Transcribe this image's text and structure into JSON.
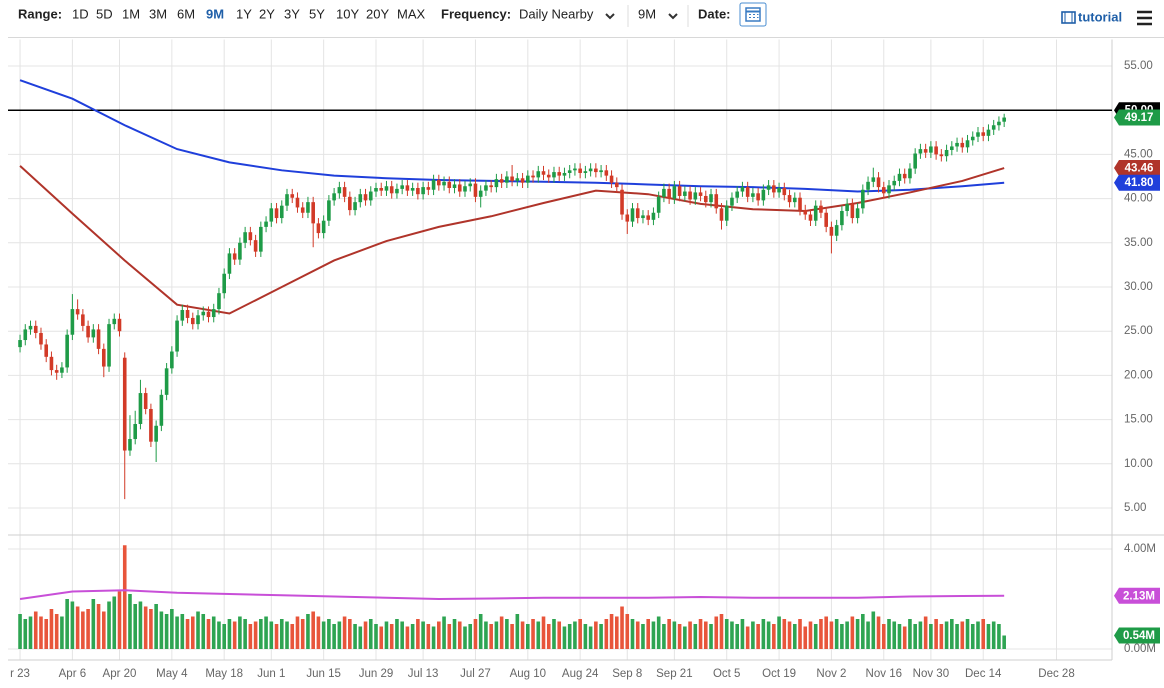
{
  "toolbar": {
    "range_label": "Range:",
    "ranges": [
      "1D",
      "5D",
      "1M",
      "3M",
      "6M",
      "9M",
      "1Y",
      "2Y",
      "3Y",
      "5Y",
      "10Y",
      "20Y",
      "MAX"
    ],
    "active_range": 5,
    "frequency_label": "Frequency:",
    "frequency": "Daily Nearby",
    "period": "9M",
    "date_label": "Date:",
    "tutorial": "tutorial"
  },
  "chart_data": {
    "type": "candlestick",
    "up_color": "#1e9b47",
    "down_color": "#d23a27",
    "grid": true,
    "xlim": [
      -2.3,
      208.6
    ],
    "xticks": [
      {
        "value": 0,
        "label": "r 23"
      },
      {
        "value": 10,
        "label": "Apr 6"
      },
      {
        "value": 19,
        "label": "Apr 20"
      },
      {
        "value": 29,
        "label": "May 4"
      },
      {
        "value": 39,
        "label": "May 18"
      },
      {
        "value": 48,
        "label": "Jun 1"
      },
      {
        "value": 58,
        "label": "Jun 15"
      },
      {
        "value": 68,
        "label": "Jun 29"
      },
      {
        "value": 77,
        "label": "Jul 13"
      },
      {
        "value": 87,
        "label": "Jul 27"
      },
      {
        "value": 97,
        "label": "Aug 10"
      },
      {
        "value": 107,
        "label": "Aug 24"
      },
      {
        "value": 116,
        "label": "Sep 8"
      },
      {
        "value": 125,
        "label": "Sep 21"
      },
      {
        "value": 135,
        "label": "Oct 5"
      },
      {
        "value": 145,
        "label": "Oct 19"
      },
      {
        "value": 155,
        "label": "Nov 2"
      },
      {
        "value": 165,
        "label": "Nov 16"
      },
      {
        "value": 174,
        "label": "Nov 30"
      },
      {
        "value": 184,
        "label": "Dec 14"
      },
      {
        "value": 198,
        "label": "Dec 28"
      }
    ],
    "ylim": [
      2,
      58
    ],
    "yticks": [
      {
        "value": 5,
        "label": "5.00"
      },
      {
        "value": 10,
        "label": "10.00"
      },
      {
        "value": 15,
        "label": "15.00"
      },
      {
        "value": 20,
        "label": "20.00"
      },
      {
        "value": 25,
        "label": "25.00"
      },
      {
        "value": 30,
        "label": "30.00"
      },
      {
        "value": 35,
        "label": "35.00"
      },
      {
        "value": 40,
        "label": "40.00"
      },
      {
        "value": 45,
        "label": "45.00"
      },
      {
        "value": 50,
        "label": "50.00"
      },
      {
        "value": 55,
        "label": "55.00"
      }
    ],
    "x": [
      0,
      1,
      2,
      3,
      4,
      5,
      6,
      7,
      8,
      9,
      10,
      11,
      12,
      13,
      14,
      15,
      16,
      17,
      18,
      19,
      20,
      21,
      22,
      23,
      24,
      25,
      26,
      27,
      28,
      29,
      30,
      31,
      32,
      33,
      34,
      35,
      36,
      37,
      38,
      39,
      40,
      41,
      42,
      43,
      44,
      45,
      46,
      47,
      48,
      49,
      50,
      51,
      52,
      53,
      54,
      55,
      56,
      57,
      58,
      59,
      60,
      61,
      62,
      63,
      64,
      65,
      66,
      67,
      68,
      69,
      70,
      71,
      72,
      73,
      74,
      75,
      76,
      77,
      78,
      79,
      80,
      81,
      82,
      83,
      84,
      85,
      86,
      87,
      88,
      89,
      90,
      91,
      92,
      93,
      94,
      95,
      96,
      97,
      98,
      99,
      100,
      101,
      102,
      103,
      104,
      105,
      106,
      107,
      108,
      109,
      110,
      111,
      112,
      113,
      114,
      115,
      116,
      117,
      118,
      119,
      120,
      121,
      122,
      123,
      124,
      125,
      126,
      127,
      128,
      129,
      130,
      131,
      132,
      133,
      134,
      135,
      136,
      137,
      138,
      139,
      140,
      141,
      142,
      143,
      144,
      145,
      146,
      147,
      148,
      149,
      150,
      151,
      152,
      153,
      154,
      155,
      156,
      157,
      158,
      159,
      160,
      161,
      162,
      163,
      164,
      165,
      166,
      167,
      168,
      169,
      170,
      171,
      172,
      173,
      174,
      175,
      176,
      177,
      178,
      179,
      180,
      181,
      182,
      183,
      184,
      185,
      186,
      187,
      188
    ],
    "open": [
      23.2,
      24.0,
      25.2,
      25.6,
      24.8,
      23.5,
      22.1,
      20.6,
      20.3,
      20.9,
      24.6,
      27.5,
      26.9,
      25.6,
      24.3,
      25.2,
      23.0,
      21.0,
      25.8,
      26.4,
      22.0,
      11.5,
      12.8,
      14.5,
      18.0,
      16.2,
      12.5,
      14.3,
      17.8,
      20.8,
      22.7,
      26.2,
      27.4,
      26.5,
      25.8,
      26.8,
      27.2,
      26.6,
      27.5,
      29.3,
      31.5,
      33.8,
      33.1,
      35.0,
      36.2,
      35.3,
      34.0,
      36.8,
      37.4,
      38.9,
      37.8,
      39.2,
      40.5,
      40.1,
      39.0,
      38.4,
      39.6,
      37.2,
      36.1,
      37.5,
      39.8,
      40.6,
      41.3,
      40.2,
      38.7,
      39.6,
      40.5,
      39.8,
      40.8,
      41.2,
      40.9,
      41.4,
      40.6,
      41.1,
      41.5,
      40.9,
      41.2,
      40.5,
      41.3,
      41.0,
      42.1,
      41.5,
      41.9,
      41.2,
      41.6,
      40.8,
      41.4,
      41.7,
      40.2,
      40.9,
      41.5,
      41.3,
      42.2,
      41.8,
      42.5,
      42.0,
      42.3,
      41.8,
      42.6,
      42.4,
      43.1,
      42.7,
      42.4,
      43.0,
      42.6,
      42.9,
      43.2,
      43.4,
      42.9,
      43.1,
      43.4,
      43.0,
      43.2,
      42.6,
      41.8,
      41.0,
      38.2,
      37.4,
      38.9,
      37.8,
      38.1,
      37.6,
      38.4,
      40.2,
      41.1,
      40.0,
      41.4,
      40.3,
      40.8,
      39.9,
      40.7,
      40.3,
      39.6,
      40.5,
      38.9,
      37.5,
      39.2,
      40.1,
      40.8,
      41.3,
      40.2,
      40.6,
      39.8,
      41.0,
      41.5,
      40.7,
      41.2,
      40.4,
      39.6,
      40.1,
      38.7,
      38.2,
      37.5,
      39.2,
      38.4,
      36.8,
      35.8,
      37.0,
      38.6,
      39.4,
      37.8,
      38.9,
      41.0,
      41.9,
      42.4,
      41.3,
      40.6,
      41.5,
      42.0,
      42.8,
      42.3,
      43.4,
      45.1,
      45.6,
      45.2,
      45.9,
      45.0,
      44.8,
      45.5,
      45.9,
      46.3,
      45.8,
      46.6,
      47.0,
      47.5,
      47.1,
      47.8,
      48.3,
      48.7
    ],
    "high": [
      24.6,
      25.8,
      26.2,
      26.2,
      25.4,
      24.1,
      22.7,
      21.2,
      21.5,
      25.2,
      29.2,
      28.6,
      27.5,
      26.2,
      25.8,
      25.8,
      23.6,
      26.4,
      27.0,
      27.0,
      22.6,
      15.5,
      16.0,
      19.5,
      18.6,
      16.8,
      14.9,
      18.4,
      21.4,
      23.3,
      26.8,
      28.0,
      28.0,
      27.1,
      27.4,
      27.8,
      27.8,
      28.1,
      29.9,
      32.1,
      34.4,
      34.4,
      35.6,
      36.8,
      36.8,
      35.9,
      37.4,
      38.0,
      39.5,
      39.5,
      39.8,
      41.1,
      41.1,
      40.7,
      39.6,
      40.2,
      40.2,
      37.8,
      38.1,
      40.4,
      41.2,
      41.9,
      41.9,
      40.8,
      40.2,
      41.1,
      41.1,
      41.4,
      41.8,
      41.8,
      42.0,
      42.0,
      41.7,
      42.1,
      42.1,
      41.8,
      41.8,
      41.9,
      41.9,
      42.7,
      42.7,
      42.5,
      42.5,
      42.2,
      42.2,
      42.0,
      42.3,
      42.3,
      41.5,
      42.1,
      42.1,
      42.8,
      42.8,
      43.1,
      43.8,
      42.9,
      42.9,
      43.2,
      43.2,
      43.7,
      43.7,
      43.3,
      43.6,
      43.6,
      43.5,
      43.8,
      44.0,
      44.0,
      43.7,
      44.0,
      44.0,
      43.8,
      43.8,
      43.2,
      42.4,
      41.6,
      38.8,
      39.5,
      39.5,
      38.7,
      38.7,
      39.0,
      40.8,
      41.7,
      41.7,
      42.0,
      42.0,
      41.4,
      41.4,
      41.3,
      41.3,
      40.9,
      41.1,
      41.1,
      39.5,
      39.8,
      40.7,
      41.4,
      41.9,
      41.9,
      41.2,
      41.2,
      41.6,
      42.1,
      42.1,
      41.8,
      41.8,
      41.0,
      40.7,
      40.7,
      39.3,
      38.8,
      39.8,
      39.8,
      39.0,
      37.4,
      37.6,
      39.2,
      40.0,
      40.0,
      39.5,
      41.6,
      42.5,
      43.5,
      43.0,
      41.9,
      42.1,
      42.6,
      43.4,
      43.4,
      44.0,
      45.7,
      46.2,
      46.2,
      46.5,
      46.5,
      45.6,
      46.1,
      46.5,
      46.9,
      46.9,
      47.2,
      47.6,
      48.1,
      48.1,
      48.4,
      48.9,
      49.3,
      49.6
    ],
    "low": [
      22.6,
      23.4,
      24.6,
      24.2,
      22.9,
      21.5,
      20.0,
      19.5,
      19.7,
      20.3,
      24.0,
      26.3,
      25.0,
      23.7,
      23.7,
      22.4,
      19.8,
      20.4,
      25.2,
      24.4,
      6.0,
      10.9,
      12.2,
      13.9,
      15.6,
      11.9,
      10.2,
      13.7,
      17.2,
      20.2,
      22.1,
      25.6,
      25.9,
      25.2,
      25.2,
      26.2,
      26.0,
      26.0,
      26.9,
      28.7,
      30.9,
      32.5,
      32.5,
      34.4,
      34.7,
      33.4,
      33.4,
      36.2,
      36.8,
      37.2,
      37.2,
      38.6,
      39.5,
      38.4,
      37.8,
      37.8,
      34.5,
      35.5,
      35.5,
      36.9,
      39.2,
      40.0,
      39.6,
      38.1,
      38.1,
      39.0,
      39.2,
      39.2,
      40.2,
      40.3,
      40.3,
      40.0,
      40.0,
      40.5,
      40.3,
      40.3,
      39.9,
      39.9,
      40.4,
      40.4,
      40.9,
      40.9,
      40.6,
      40.6,
      40.2,
      40.2,
      40.8,
      39.6,
      39.0,
      40.3,
      40.7,
      40.7,
      41.2,
      41.2,
      41.4,
      41.4,
      41.2,
      41.2,
      41.8,
      41.8,
      42.1,
      41.8,
      41.8,
      42.0,
      42.0,
      42.3,
      42.6,
      42.3,
      42.3,
      42.5,
      42.4,
      42.4,
      42.0,
      41.2,
      40.7,
      37.6,
      36.0,
      36.8,
      37.2,
      37.2,
      37.0,
      37.0,
      37.8,
      39.6,
      39.4,
      39.4,
      39.7,
      39.7,
      39.3,
      39.3,
      39.7,
      39.0,
      39.0,
      38.3,
      36.5,
      36.9,
      38.6,
      39.5,
      40.2,
      39.6,
      39.6,
      39.2,
      39.2,
      40.4,
      40.1,
      40.1,
      39.8,
      39.0,
      39.0,
      38.1,
      37.6,
      36.9,
      36.9,
      37.8,
      36.2,
      33.8,
      35.2,
      36.4,
      38.0,
      37.2,
      37.2,
      38.3,
      40.4,
      41.3,
      40.7,
      40.0,
      40.0,
      40.9,
      41.4,
      41.7,
      41.7,
      42.8,
      44.5,
      44.6,
      44.6,
      44.4,
      44.2,
      44.2,
      44.9,
      45.3,
      45.2,
      45.2,
      46.0,
      46.4,
      46.5,
      46.5,
      47.2,
      47.7,
      48.1
    ],
    "close": [
      24.0,
      25.2,
      25.6,
      24.8,
      23.5,
      22.1,
      20.6,
      20.3,
      20.9,
      24.6,
      27.5,
      26.9,
      25.6,
      24.3,
      25.2,
      23.0,
      21.0,
      25.8,
      26.4,
      25.0,
      11.5,
      12.8,
      14.5,
      18.0,
      16.2,
      12.5,
      14.3,
      17.8,
      20.8,
      22.7,
      26.2,
      27.4,
      26.5,
      25.8,
      26.8,
      27.2,
      26.6,
      27.5,
      29.3,
      31.5,
      33.8,
      33.1,
      35.0,
      36.2,
      35.3,
      34.0,
      36.8,
      37.4,
      38.9,
      37.8,
      39.2,
      40.5,
      40.1,
      39.0,
      38.4,
      39.6,
      37.2,
      36.1,
      37.5,
      39.8,
      40.6,
      41.3,
      40.2,
      38.7,
      39.6,
      40.5,
      39.8,
      40.8,
      41.2,
      40.9,
      41.4,
      40.6,
      41.1,
      41.5,
      40.9,
      41.2,
      40.5,
      41.3,
      41.0,
      42.1,
      41.5,
      41.9,
      41.2,
      41.6,
      40.8,
      41.4,
      41.7,
      40.2,
      40.9,
      41.5,
      41.3,
      42.2,
      41.8,
      42.5,
      42.0,
      42.3,
      41.8,
      42.6,
      42.4,
      43.1,
      42.7,
      42.4,
      43.0,
      42.6,
      42.9,
      43.2,
      43.4,
      42.9,
      43.1,
      43.4,
      43.0,
      43.2,
      42.6,
      41.8,
      41.3,
      38.2,
      37.4,
      38.9,
      37.8,
      38.1,
      37.6,
      38.4,
      40.2,
      41.1,
      40.0,
      41.4,
      40.3,
      40.8,
      39.9,
      40.7,
      40.3,
      39.6,
      40.5,
      38.9,
      37.5,
      39.2,
      40.1,
      40.8,
      41.3,
      40.2,
      40.6,
      39.8,
      41.0,
      41.5,
      40.7,
      41.2,
      40.4,
      39.6,
      40.1,
      38.7,
      38.2,
      37.5,
      39.2,
      38.4,
      36.8,
      35.8,
      37.0,
      38.6,
      39.4,
      37.8,
      38.9,
      41.0,
      41.9,
      42.4,
      41.3,
      40.6,
      41.5,
      42.0,
      42.8,
      42.3,
      43.4,
      45.1,
      45.6,
      45.2,
      45.9,
      45.0,
      44.8,
      45.5,
      45.9,
      46.3,
      45.8,
      46.6,
      47.0,
      47.5,
      47.1,
      47.8,
      48.3,
      48.7,
      49.17
    ],
    "overlays": [
      {
        "color": "#1f3fdb",
        "x": [
          0,
          10,
          20,
          30,
          40,
          50,
          60,
          70,
          80,
          90,
          100,
          110,
          120,
          130,
          140,
          150,
          160,
          170,
          180,
          188
        ],
        "values": [
          53.4,
          51.3,
          48.3,
          45.6,
          44.1,
          43.2,
          42.6,
          42.3,
          42.1,
          42.0,
          41.9,
          41.8,
          41.6,
          41.4,
          41.3,
          41.1,
          40.8,
          41.0,
          41.4,
          41.8
        ]
      },
      {
        "color": "#b0342a",
        "x": [
          0,
          10,
          20,
          30,
          40,
          50,
          60,
          70,
          80,
          90,
          100,
          110,
          120,
          130,
          140,
          150,
          160,
          170,
          180,
          188
        ],
        "values": [
          43.7,
          38.3,
          33.0,
          28.0,
          27.0,
          30.0,
          33.0,
          35.2,
          36.8,
          38.0,
          39.5,
          40.9,
          40.5,
          39.4,
          38.8,
          38.6,
          39.5,
          40.7,
          42.0,
          43.46
        ]
      }
    ],
    "hline": {
      "value": 50,
      "color": "#000000"
    },
    "markers": [
      {
        "value": 50,
        "label": "50.00",
        "color": "#000000"
      },
      {
        "value": 43.46,
        "label": "43.46",
        "color": "#b0342a"
      },
      {
        "value": 41.8,
        "label": "41.80",
        "color": "#1f3fdb"
      },
      {
        "value": 49.17,
        "label": "49.17",
        "color": "#1e9b47"
      }
    ],
    "volume": {
      "up_color": "#2ea452",
      "down_color": "#e8553b",
      "ylim": [
        -0.44,
        4.56
      ],
      "yticks": [
        {
          "value": 0,
          "label": "0.00M"
        },
        {
          "value": 4,
          "label": "4.00M"
        }
      ],
      "values": [
        1.4,
        1.2,
        1.3,
        1.5,
        1.3,
        1.2,
        1.6,
        1.4,
        1.3,
        2.0,
        1.9,
        1.7,
        1.5,
        1.6,
        2.0,
        1.8,
        1.5,
        1.9,
        2.1,
        2.3,
        4.15,
        2.2,
        1.8,
        1.9,
        1.7,
        1.6,
        1.8,
        1.5,
        1.4,
        1.6,
        1.3,
        1.4,
        1.2,
        1.3,
        1.5,
        1.4,
        1.2,
        1.3,
        1.1,
        1.0,
        1.2,
        1.1,
        1.3,
        1.2,
        1.0,
        1.1,
        1.2,
        1.3,
        1.1,
        1.0,
        1.2,
        1.1,
        1.0,
        1.3,
        1.2,
        1.4,
        1.5,
        1.3,
        1.1,
        1.2,
        1.0,
        1.1,
        1.3,
        1.2,
        1.0,
        0.9,
        1.1,
        1.2,
        1.0,
        0.9,
        1.1,
        1.0,
        1.2,
        1.1,
        0.9,
        1.0,
        1.2,
        1.1,
        1.0,
        0.9,
        1.1,
        1.3,
        1.0,
        1.2,
        1.1,
        0.9,
        1.0,
        1.2,
        1.4,
        1.1,
        1.0,
        1.1,
        1.3,
        1.2,
        1.0,
        1.4,
        1.1,
        1.0,
        1.2,
        1.1,
        1.3,
        1.0,
        1.2,
        1.1,
        0.9,
        1.0,
        1.1,
        1.2,
        1.0,
        0.9,
        1.1,
        1.0,
        1.2,
        1.4,
        1.3,
        1.7,
        1.4,
        1.2,
        1.1,
        1.0,
        1.2,
        1.1,
        1.3,
        1.0,
        1.2,
        1.1,
        1.0,
        0.9,
        1.1,
        1.0,
        1.2,
        1.1,
        1.0,
        1.3,
        1.4,
        1.2,
        1.1,
        1.0,
        1.2,
        0.9,
        1.1,
        1.0,
        1.2,
        1.1,
        1.0,
        1.3,
        1.2,
        1.1,
        1.0,
        1.2,
        0.9,
        1.1,
        1.0,
        1.2,
        1.3,
        1.1,
        1.2,
        1.0,
        1.1,
        1.3,
        1.2,
        1.4,
        1.1,
        1.5,
        1.3,
        1.0,
        1.2,
        1.1,
        1.0,
        0.9,
        1.2,
        1.0,
        1.1,
        1.3,
        1.0,
        1.2,
        1.0,
        1.1,
        1.2,
        1.0,
        1.1,
        1.2,
        1.0,
        1.1,
        1.2,
        1.0,
        1.1,
        1.0,
        0.54
      ],
      "overlay": {
        "color": "#c84fd8",
        "x": [
          0,
          10,
          20,
          30,
          40,
          50,
          60,
          70,
          80,
          90,
          100,
          110,
          120,
          130,
          140,
          150,
          160,
          170,
          180,
          188
        ],
        "values": [
          2.0,
          2.3,
          2.35,
          2.25,
          2.2,
          2.15,
          2.1,
          2.05,
          2.0,
          2.02,
          2.05,
          2.05,
          2.05,
          2.08,
          2.05,
          2.05,
          2.05,
          2.1,
          2.12,
          2.13
        ]
      },
      "markers": [
        {
          "value": 2.13,
          "label": "2.13M",
          "color": "#c84fd8"
        },
        {
          "value": 0.54,
          "label": "0.54M",
          "color": "#1e9b47"
        }
      ]
    }
  }
}
